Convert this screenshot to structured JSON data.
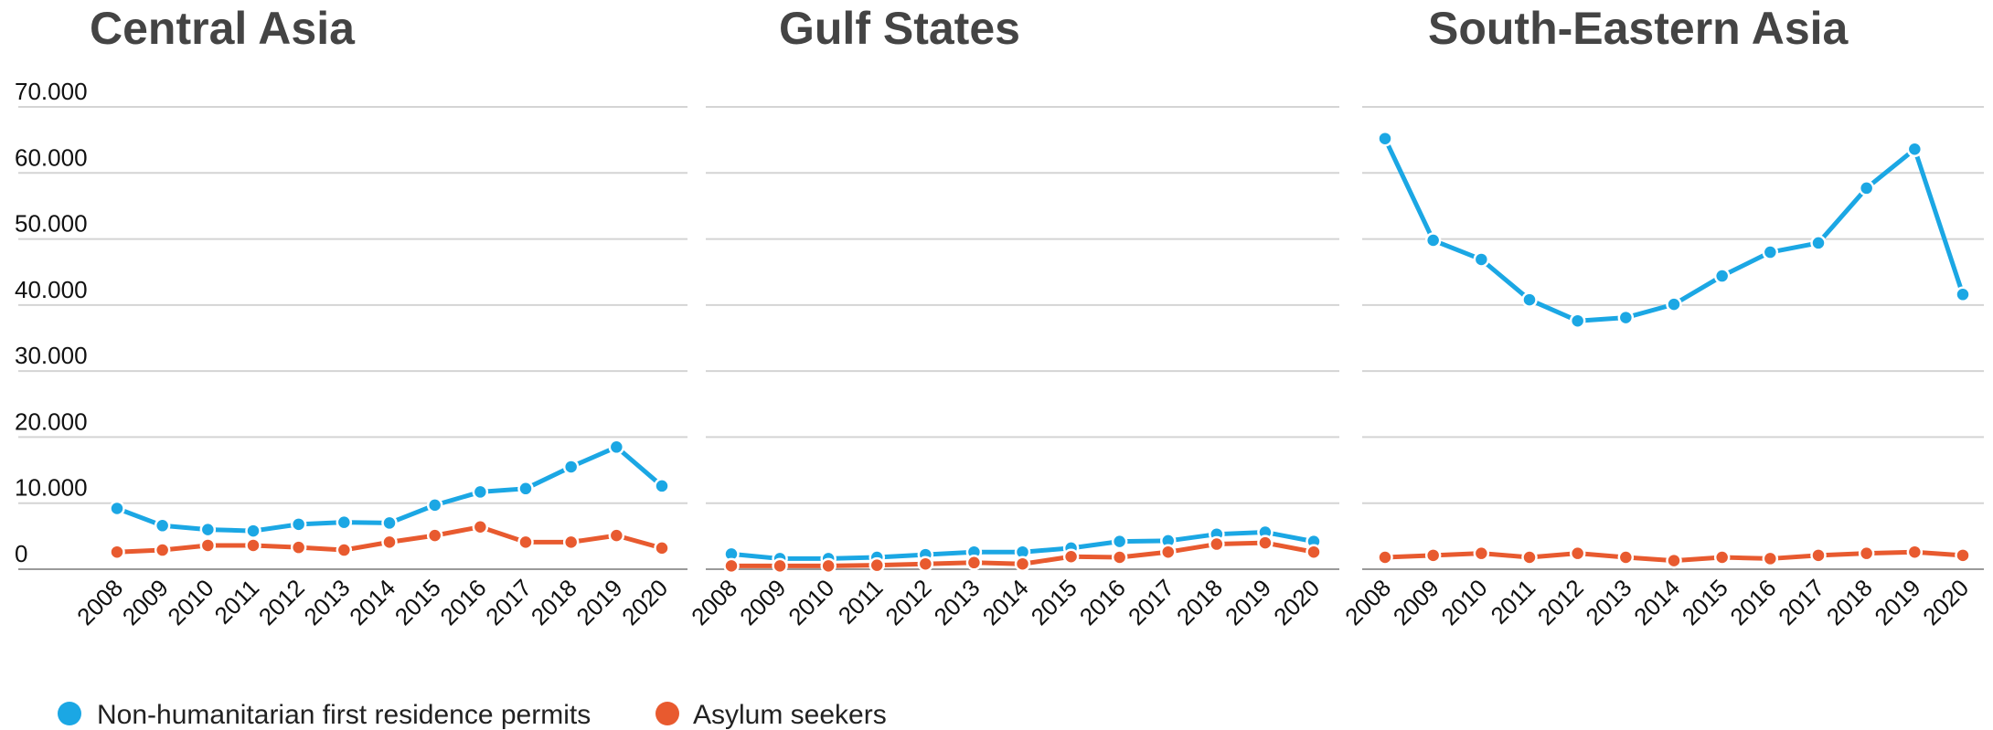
{
  "colors": {
    "non_humanitarian": "#1ba7e4",
    "asylum": "#e85a2f",
    "grid": "#d4d4d4",
    "title": "#444444"
  },
  "legend": [
    {
      "label": "Non-humanitarian first residence permits",
      "color": "#1ba7e4"
    },
    {
      "label": "Asylum seekers",
      "color": "#e85a2f"
    }
  ],
  "y_tick_labels": [
    "70.000",
    "60.000",
    "50.000",
    "40.000",
    "30.000",
    "20.000",
    "10.000",
    "0"
  ],
  "chart_data": [
    {
      "type": "line",
      "title": "Central Asia",
      "x": [
        "2008",
        "2009",
        "2010",
        "2011",
        "2012",
        "2013",
        "2014",
        "2015",
        "2016",
        "2017",
        "2018",
        "2019",
        "2020"
      ],
      "ylim": [
        0,
        70000
      ],
      "yticks": [
        0,
        10000,
        20000,
        30000,
        40000,
        50000,
        60000,
        70000
      ],
      "grid": true,
      "series": [
        {
          "name": "Non-humanitarian first residence permits",
          "color": "#1ba7e4",
          "values": [
            9200,
            6600,
            6000,
            5800,
            6800,
            7100,
            7000,
            9700,
            11700,
            12200,
            15500,
            18500,
            12600
          ]
        },
        {
          "name": "Asylum seekers",
          "color": "#e85a2f",
          "values": [
            2600,
            2900,
            3600,
            3600,
            3300,
            2900,
            4100,
            5100,
            6400,
            4100,
            4100,
            5100,
            3200
          ]
        }
      ]
    },
    {
      "type": "line",
      "title": "Gulf States",
      "x": [
        "2008",
        "2009",
        "2010",
        "2011",
        "2012",
        "2013",
        "2014",
        "2015",
        "2016",
        "2017",
        "2018",
        "2019",
        "2020"
      ],
      "ylim": [
        0,
        70000
      ],
      "yticks": [
        0,
        10000,
        20000,
        30000,
        40000,
        50000,
        60000,
        70000
      ],
      "grid": true,
      "series": [
        {
          "name": "Non-humanitarian first residence permits",
          "color": "#1ba7e4",
          "values": [
            2300,
            1600,
            1600,
            1800,
            2200,
            2600,
            2600,
            3200,
            4200,
            4300,
            5300,
            5600,
            4200
          ]
        },
        {
          "name": "Asylum seekers",
          "color": "#e85a2f",
          "values": [
            500,
            500,
            500,
            600,
            800,
            1000,
            800,
            1900,
            1800,
            2600,
            3800,
            4000,
            2600
          ]
        }
      ]
    },
    {
      "type": "line",
      "title": "South-Eastern Asia",
      "x": [
        "2008",
        "2009",
        "2010",
        "2011",
        "2012",
        "2013",
        "2014",
        "2015",
        "2016",
        "2017",
        "2018",
        "2019",
        "2020"
      ],
      "ylim": [
        0,
        70000
      ],
      "yticks": [
        0,
        10000,
        20000,
        30000,
        40000,
        50000,
        60000,
        70000
      ],
      "grid": true,
      "series": [
        {
          "name": "Non-humanitarian first residence permits",
          "color": "#1ba7e4",
          "values": [
            65200,
            49800,
            46900,
            40800,
            37600,
            38100,
            40100,
            44400,
            48000,
            49400,
            57700,
            63600,
            41600
          ]
        },
        {
          "name": "Asylum seekers",
          "color": "#e85a2f",
          "values": [
            1800,
            2100,
            2400,
            1800,
            2400,
            1800,
            1300,
            1800,
            1600,
            2100,
            2400,
            2600,
            2100
          ]
        }
      ]
    }
  ]
}
